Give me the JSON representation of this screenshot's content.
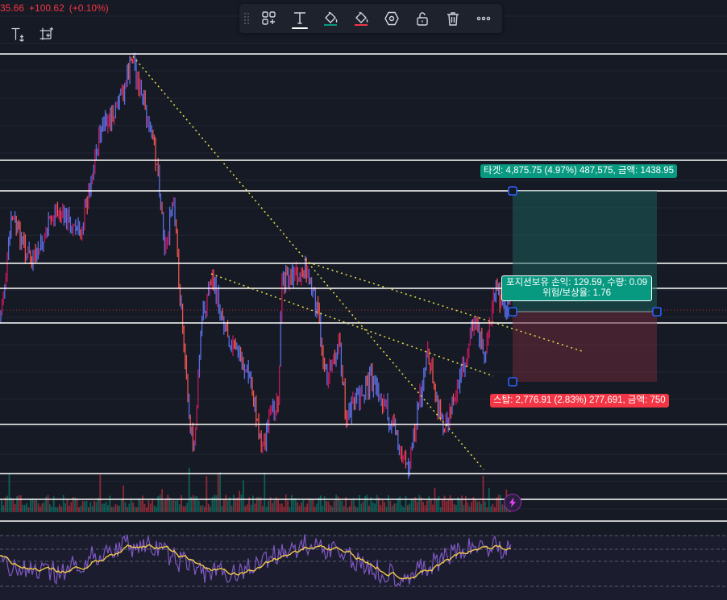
{
  "price_readout": {
    "last": "35.66",
    "change": "+100.62",
    "change_pct": "(+0.10%)"
  },
  "toolbar": {
    "items": [
      {
        "name": "drag-handle",
        "icon": "grip-dots-icon"
      },
      {
        "name": "templates-button",
        "icon": "templates-icon"
      },
      {
        "name": "text-button",
        "icon": "text-T-icon",
        "active": true
      },
      {
        "name": "fill-color-button",
        "icon": "paint-bucket-icon",
        "swatch": "#089981"
      },
      {
        "name": "stop-color-button",
        "icon": "paint-bucket-icon",
        "swatch": "#f23645"
      },
      {
        "name": "settings-button",
        "icon": "hexagon-gear-icon"
      },
      {
        "name": "lock-button",
        "icon": "unlock-icon"
      },
      {
        "name": "delete-button",
        "icon": "trash-icon"
      },
      {
        "name": "more-button",
        "icon": "more-dots-icon"
      }
    ]
  },
  "side_tools": [
    {
      "name": "text-anchor-tool",
      "icon": "text-anchor-icon"
    },
    {
      "name": "add-frame-tool",
      "icon": "frame-plus-icon"
    }
  ],
  "position": {
    "target_label": "타겟: 4,875.75 (4.97%) 487,575, 금액: 1438.95",
    "stop_label": "스탑: 2,776.91 (2.83%) 277,691, 금액: 750",
    "pnl_label": "포지션보유 손익: 129.59, 수량: 0.09",
    "rr_label": "위험/보상율: 1.76",
    "target_color": "#089981",
    "stop_color": "#f23645"
  },
  "colors": {
    "background": "#161a25",
    "up": "#089981",
    "down": "#f23645",
    "wick_blue": "#5b6ee1",
    "trendline": "#e6e04a",
    "rsi_line": "#7e57c2",
    "rsi_ma": "#f2c94c"
  },
  "chart_data": {
    "type": "candlestick",
    "horizontal_levels": 11,
    "trendlines": 3,
    "indicators": [
      "volume",
      "rsi"
    ]
  }
}
